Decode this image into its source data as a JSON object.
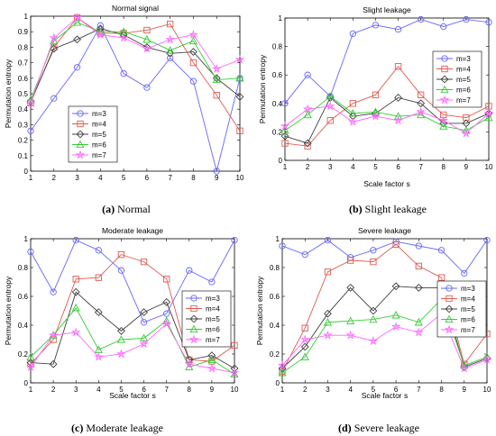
{
  "colors": {
    "m3": "#6666ff",
    "m4": "#e05a50",
    "m5": "#404040",
    "m6": "#33cc33",
    "m7": "#ff66ff"
  },
  "charts": [
    {
      "caption_letter": "(a)",
      "caption_text": "Normal",
      "chart_data": {
        "type": "line",
        "title": "Normal signal",
        "xlabel": "",
        "ylabel": "Permutation entropy",
        "xlim": [
          1,
          10
        ],
        "ylim": [
          0,
          1
        ],
        "xticks": [
          1,
          2,
          3,
          4,
          5,
          6,
          7,
          8,
          9,
          10
        ],
        "yticks": [
          "0",
          "0.1",
          "0.2",
          "0.3",
          "0.4",
          "0.5",
          "0.6",
          "0.7",
          "0.8",
          "0.9",
          "1"
        ],
        "legend": "bottom-left",
        "x": [
          1,
          2,
          3,
          4,
          5,
          6,
          7,
          8,
          9,
          10
        ],
        "series": [
          {
            "name": "m=3",
            "marker": "circle",
            "color": "#6666ff",
            "values": [
              0.26,
              0.47,
              0.67,
              0.94,
              0.63,
              0.54,
              0.73,
              0.58,
              0.0,
              0.6
            ]
          },
          {
            "name": "m=4",
            "marker": "square",
            "color": "#e05a50",
            "values": [
              0.44,
              0.8,
              0.99,
              0.89,
              0.89,
              0.91,
              0.95,
              0.7,
              0.49,
              0.26
            ]
          },
          {
            "name": "m=5",
            "marker": "diamond",
            "color": "#404040",
            "values": [
              0.45,
              0.79,
              0.85,
              0.92,
              0.88,
              0.8,
              0.76,
              0.77,
              0.6,
              0.48
            ]
          },
          {
            "name": "m=6",
            "marker": "triangle",
            "color": "#33cc33",
            "values": [
              0.46,
              0.84,
              0.96,
              0.9,
              0.9,
              0.85,
              0.78,
              0.84,
              0.59,
              0.6
            ]
          },
          {
            "name": "m=7",
            "marker": "star",
            "color": "#ff66ff",
            "values": [
              0.44,
              0.86,
              0.99,
              0.88,
              0.86,
              0.79,
              0.85,
              0.88,
              0.66,
              0.72
            ]
          }
        ]
      }
    },
    {
      "caption_letter": "(b)",
      "caption_text": "Slight leakage",
      "chart_data": {
        "type": "line",
        "title": "Slight leakage",
        "xlabel": "Scale factor s",
        "ylabel": "Permutation entropy",
        "xlim": [
          1,
          10
        ],
        "ylim": [
          0,
          1
        ],
        "xticks": [
          1,
          2,
          3,
          4,
          5,
          6,
          7,
          8,
          9,
          10
        ],
        "yticks": [
          "0",
          "0.2",
          "0.4",
          "0.6",
          "0.8",
          "1"
        ],
        "legend": "right",
        "x": [
          1,
          2,
          3,
          4,
          5,
          6,
          7,
          8,
          9,
          10
        ],
        "series": [
          {
            "name": "m=3",
            "marker": "circle",
            "color": "#6666ff",
            "values": [
              0.4,
              0.6,
              0.45,
              0.89,
              0.95,
              0.92,
              0.99,
              0.94,
              0.99,
              0.97
            ]
          },
          {
            "name": "m=4",
            "marker": "square",
            "color": "#e05a50",
            "values": [
              0.12,
              0.1,
              0.28,
              0.4,
              0.46,
              0.66,
              0.46,
              0.32,
              0.3,
              0.38
            ]
          },
          {
            "name": "m=5",
            "marker": "diamond",
            "color": "#404040",
            "values": [
              0.17,
              0.12,
              0.44,
              0.31,
              0.33,
              0.44,
              0.4,
              0.26,
              0.26,
              0.33
            ]
          },
          {
            "name": "m=6",
            "marker": "triangle",
            "color": "#33cc33",
            "values": [
              0.21,
              0.32,
              0.45,
              0.33,
              0.34,
              0.31,
              0.32,
              0.24,
              0.21,
              0.3
            ]
          },
          {
            "name": "m=7",
            "marker": "star",
            "color": "#ff66ff",
            "values": [
              0.24,
              0.36,
              0.38,
              0.27,
              0.31,
              0.28,
              0.34,
              0.28,
              0.19,
              0.33
            ]
          }
        ]
      }
    },
    {
      "caption_letter": "(c)",
      "caption_text": "Moderate leakage",
      "chart_data": {
        "type": "line",
        "title": "Moderate leakage",
        "xlabel": "Scale factor s",
        "ylabel": "Permutation entropy",
        "xlim": [
          1,
          10
        ],
        "ylim": [
          0,
          1
        ],
        "xticks": [
          1,
          2,
          3,
          4,
          5,
          6,
          7,
          8,
          9,
          10
        ],
        "yticks": [
          "0",
          "0.2",
          "0.4",
          "0.6",
          "0.8",
          "1"
        ],
        "legend": "right",
        "x": [
          1,
          2,
          3,
          4,
          5,
          6,
          7,
          8,
          9,
          10
        ],
        "series": [
          {
            "name": "m=3",
            "marker": "circle",
            "color": "#6666ff",
            "values": [
              0.91,
              0.63,
              0.99,
              0.92,
              0.78,
              0.42,
              0.48,
              0.78,
              0.7,
              0.99
            ]
          },
          {
            "name": "m=4",
            "marker": "square",
            "color": "#e05a50",
            "values": [
              0.13,
              0.3,
              0.72,
              0.73,
              0.89,
              0.84,
              0.72,
              0.16,
              0.15,
              0.26
            ]
          },
          {
            "name": "m=5",
            "marker": "diamond",
            "color": "#404040",
            "values": [
              0.14,
              0.13,
              0.63,
              0.49,
              0.36,
              0.49,
              0.56,
              0.16,
              0.19,
              0.1
            ]
          },
          {
            "name": "m=6",
            "marker": "triangle",
            "color": "#33cc33",
            "values": [
              0.18,
              0.33,
              0.52,
              0.23,
              0.3,
              0.31,
              0.43,
              0.11,
              0.16,
              0.06
            ]
          },
          {
            "name": "m=7",
            "marker": "star",
            "color": "#ff66ff",
            "values": [
              0.11,
              0.33,
              0.35,
              0.18,
              0.2,
              0.27,
              0.41,
              0.13,
              0.1,
              0.07
            ]
          }
        ]
      }
    },
    {
      "caption_letter": "(d)",
      "caption_text": "Severe leakage",
      "chart_data": {
        "type": "line",
        "title": "Severe leakage",
        "xlabel": "Scale factor s",
        "ylabel": "Permutation entropy",
        "xlim": [
          1,
          10
        ],
        "ylim": [
          0,
          1
        ],
        "xticks": [
          1,
          2,
          3,
          4,
          5,
          6,
          7,
          8,
          9,
          10
        ],
        "yticks": [
          "0",
          "0.2",
          "0.4",
          "0.6",
          "0.8",
          "1"
        ],
        "legend": "bottom-right",
        "x": [
          1,
          2,
          3,
          4,
          5,
          6,
          7,
          8,
          9,
          10
        ],
        "series": [
          {
            "name": "m=3",
            "marker": "circle",
            "color": "#6666ff",
            "values": [
              0.95,
              0.89,
              0.99,
              0.87,
              0.92,
              0.98,
              0.95,
              0.92,
              0.76,
              0.99
            ]
          },
          {
            "name": "m=4",
            "marker": "square",
            "color": "#e05a50",
            "values": [
              0.08,
              0.38,
              0.77,
              0.85,
              0.84,
              0.96,
              0.81,
              0.73,
              0.13,
              0.34
            ]
          },
          {
            "name": "m=5",
            "marker": "diamond",
            "color": "#404040",
            "values": [
              0.1,
              0.25,
              0.48,
              0.66,
              0.5,
              0.67,
              0.66,
              0.66,
              0.11,
              0.17
            ]
          },
          {
            "name": "m=6",
            "marker": "triangle",
            "color": "#33cc33",
            "values": [
              0.07,
              0.18,
              0.42,
              0.43,
              0.44,
              0.47,
              0.42,
              0.58,
              0.12,
              0.18
            ]
          },
          {
            "name": "m=7",
            "marker": "star",
            "color": "#ff66ff",
            "values": [
              0.12,
              0.3,
              0.33,
              0.33,
              0.29,
              0.39,
              0.35,
              0.48,
              0.1,
              0.16
            ]
          }
        ]
      }
    }
  ]
}
